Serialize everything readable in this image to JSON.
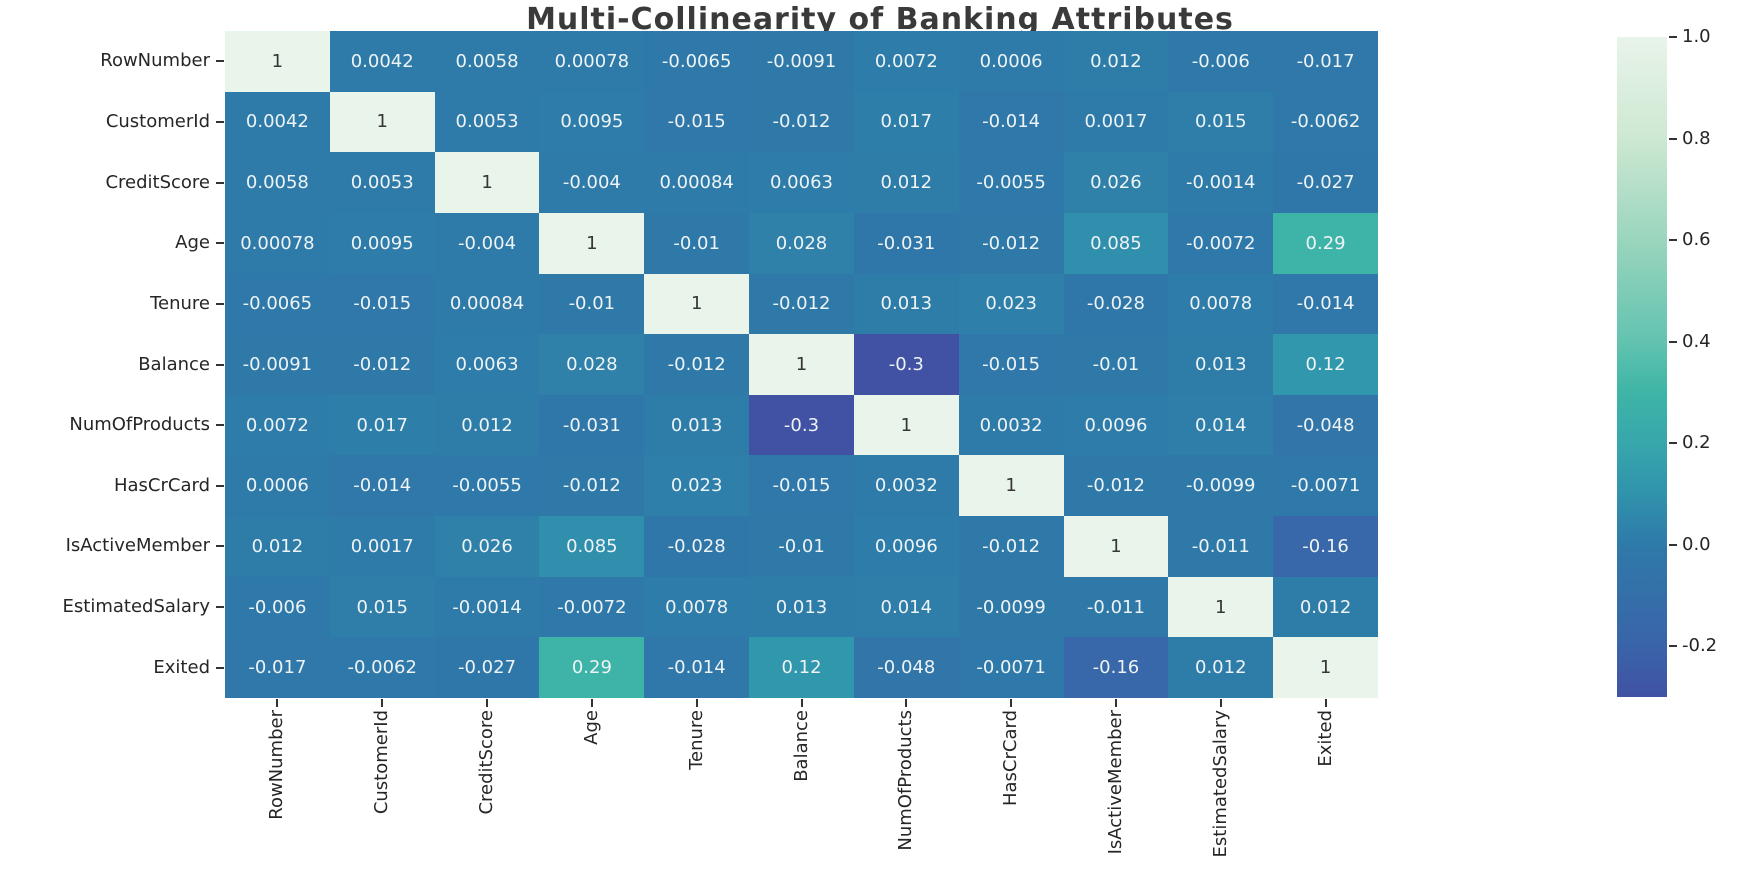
{
  "chart_data": {
    "type": "heatmap",
    "title": "Multi-Collinearity of Banking Attributes",
    "categories": [
      "RowNumber",
      "CustomerId",
      "CreditScore",
      "Age",
      "Tenure",
      "Balance",
      "NumOfProducts",
      "HasCrCard",
      "IsActiveMember",
      "EstimatedSalary",
      "Exited"
    ],
    "matrix": [
      [
        1,
        0.0042,
        0.0058,
        0.00078,
        -0.0065,
        -0.0091,
        0.0072,
        0.0006,
        0.012,
        -0.006,
        -0.017
      ],
      [
        0.0042,
        1,
        0.0053,
        0.0095,
        -0.015,
        -0.012,
        0.017,
        -0.014,
        0.0017,
        0.015,
        -0.0062
      ],
      [
        0.0058,
        0.0053,
        1,
        -0.004,
        0.00084,
        0.0063,
        0.012,
        -0.0055,
        0.026,
        -0.0014,
        -0.027
      ],
      [
        0.00078,
        0.0095,
        -0.004,
        1,
        -0.01,
        0.028,
        -0.031,
        -0.012,
        0.085,
        -0.0072,
        0.29
      ],
      [
        -0.0065,
        -0.015,
        0.00084,
        -0.01,
        1,
        -0.012,
        0.013,
        0.023,
        -0.028,
        0.0078,
        -0.014
      ],
      [
        -0.0091,
        -0.012,
        0.0063,
        0.028,
        -0.012,
        1,
        -0.3,
        -0.015,
        -0.01,
        0.013,
        0.12
      ],
      [
        0.0072,
        0.017,
        0.012,
        -0.031,
        0.013,
        -0.3,
        1,
        0.0032,
        0.0096,
        0.014,
        -0.048
      ],
      [
        0.0006,
        -0.014,
        -0.0055,
        -0.012,
        0.023,
        -0.015,
        0.0032,
        1,
        -0.012,
        -0.0099,
        -0.0071
      ],
      [
        0.012,
        0.0017,
        0.026,
        0.085,
        -0.028,
        -0.01,
        0.0096,
        -0.012,
        1,
        -0.011,
        -0.16
      ],
      [
        -0.006,
        0.015,
        -0.0014,
        -0.0072,
        0.0078,
        0.013,
        0.014,
        -0.0099,
        -0.011,
        1,
        0.012
      ],
      [
        -0.017,
        -0.0062,
        -0.027,
        0.29,
        -0.014,
        0.12,
        -0.048,
        -0.0071,
        -0.16,
        0.012,
        1
      ]
    ],
    "colorbar": {
      "position": "right",
      "vmin": -0.3,
      "vmax": 1.0,
      "tick_labels": [
        "1.0",
        "0.8",
        "0.6",
        "0.4",
        "0.2",
        "0.0",
        "-0.2"
      ],
      "tick_values": [
        1.0,
        0.8,
        0.6,
        0.4,
        0.2,
        0.0,
        -0.2
      ]
    },
    "colormap_stops": [
      {
        "v": -0.3,
        "c": "#4152a4"
      },
      {
        "v": -0.2,
        "c": "#3a64a9"
      },
      {
        "v": 0.0,
        "c": "#2e7aa9"
      },
      {
        "v": 0.1,
        "c": "#3093ac"
      },
      {
        "v": 0.2,
        "c": "#37a7ac"
      },
      {
        "v": 0.3,
        "c": "#3eb5a6"
      },
      {
        "v": 0.4,
        "c": "#62c3b0"
      },
      {
        "v": 0.6,
        "c": "#9ad5bd"
      },
      {
        "v": 0.8,
        "c": "#cde8d2"
      },
      {
        "v": 1.0,
        "c": "#e9f4ea"
      }
    ],
    "grid": "off"
  },
  "colors": {
    "annotation_light": "#eef3f5",
    "annotation_dark": "#363636",
    "title": "#3a3a3a",
    "axis_label": "#262626",
    "tick": "#333333",
    "background": "#ffffff"
  }
}
